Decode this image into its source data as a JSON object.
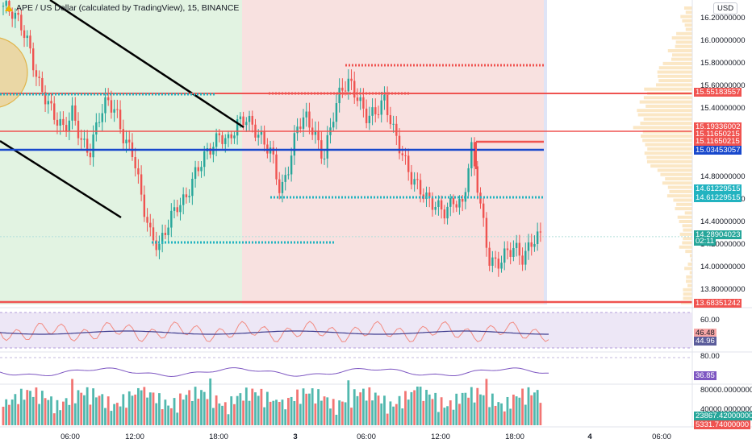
{
  "legend": {
    "symbol": "APE / US Dollar (calculated by TradingView), 15, BINANCE"
  },
  "currency": "USD",
  "price_axis": [
    "16.20000000",
    "16.00000000",
    "15.80000000",
    "15.60000000",
    "15.40000000",
    "14.80000000",
    "14.60000000",
    "14.40000000",
    "14.20000000",
    "14.00000000",
    "13.80000000"
  ],
  "price_tags": [
    {
      "id": "t1",
      "text": "15.55183557",
      "color": "#f05350"
    },
    {
      "id": "t2",
      "text": "15.19336002",
      "color": "#f05350"
    },
    {
      "id": "t3",
      "text": "15.11650215",
      "color": "#f05350"
    },
    {
      "id": "t4",
      "text": "15.11650215",
      "color": "#f05350"
    },
    {
      "id": "t5",
      "text": "15.03453057",
      "color": "#1848cc"
    },
    {
      "id": "t6",
      "text": "14.61229515",
      "color": "#22b3c0"
    },
    {
      "id": "t7",
      "text": "14.61229515",
      "color": "#22b3c0"
    },
    {
      "id": "t8",
      "text": "14.28904023",
      "color": "#26a69a"
    },
    {
      "id": "t9",
      "text": "02:11",
      "color": "#26a69a"
    },
    {
      "id": "t10",
      "text": "13.68351242",
      "color": "#f05350"
    }
  ],
  "rsi_axis": [
    "60.00"
  ],
  "rsi_tags": [
    {
      "id": "r1",
      "text": "46.48",
      "color": "#f7a6a6"
    },
    {
      "id": "r2",
      "text": "44.96",
      "color": "#5b5d9b"
    }
  ],
  "osc_axis": [
    "80.00"
  ],
  "osc_tags": [
    {
      "id": "o1",
      "text": "36.85",
      "color": "#7e57c2"
    }
  ],
  "vol_axis": [
    "80000.00000000",
    "40000.00000000"
  ],
  "vol_tags": [
    {
      "id": "v1",
      "text": "23867.42000000",
      "color": "#26a69a"
    },
    {
      "id": "v2",
      "text": "5331.74000000",
      "color": "#ef5350"
    }
  ],
  "time_axis": [
    "06:00",
    "12:00",
    "18:00",
    "3",
    "06:00",
    "12:00",
    "18:00",
    "4",
    "06:00"
  ],
  "colors": {
    "up": "#26a69a",
    "down": "#ef5350",
    "hline": "#ef5350",
    "blue": "#1848cc",
    "cyan": "#22b3c0"
  },
  "chart_data": {
    "type": "candlestick",
    "title": "APE / US Dollar (calculated by TradingView), 15, BINANCE",
    "ylim": [
      13.7,
      16.3
    ],
    "hlines": [
      15.55183557,
      15.19336002,
      15.11650215,
      15.03453057,
      14.61229515,
      13.68351242
    ],
    "last_price": 14.28904023,
    "close_path": [
      16.25,
      16.2,
      16.1,
      15.9,
      15.6,
      15.45,
      15.3,
      15.2,
      15.35,
      15.1,
      15.0,
      15.3,
      15.45,
      15.35,
      15.1,
      15.0,
      14.6,
      14.3,
      14.2,
      14.4,
      14.55,
      14.6,
      14.8,
      14.95,
      15.05,
      15.15,
      15.1,
      15.25,
      15.3,
      15.2,
      15.1,
      15.0,
      14.65,
      14.9,
      15.25,
      15.3,
      15.15,
      14.95,
      15.3,
      15.55,
      15.6,
      15.45,
      15.3,
      15.35,
      15.45,
      15.2,
      15.0,
      14.8,
      14.7,
      14.6,
      14.55,
      14.5,
      14.6,
      14.55,
      15.05,
      14.6,
      14.1,
      14.05,
      14.15,
      14.2,
      14.1,
      14.25,
      14.3
    ]
  }
}
